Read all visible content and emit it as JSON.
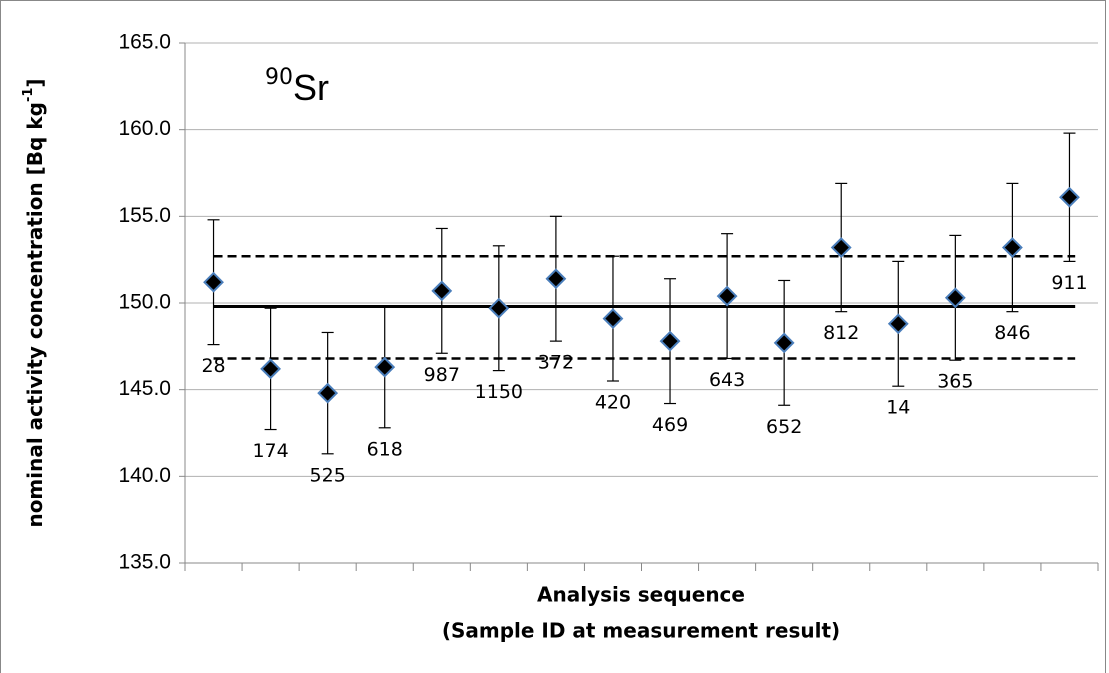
{
  "chart_data": {
    "type": "scatter",
    "title": {
      "mass_number": "90",
      "element": "Sr"
    },
    "ylabel": {
      "text": "nominal activity concentration [Bq kg",
      "sup": "-1",
      "end": "]"
    },
    "xlabel": [
      "Analysis sequence",
      "(Sample ID at measurement result)"
    ],
    "categories": [
      "28",
      "174",
      "525",
      "618",
      "987",
      "1150",
      "372",
      "420",
      "469",
      "643",
      "652",
      "812",
      "14",
      "365",
      "846",
      "911"
    ],
    "values": [
      151.2,
      146.2,
      144.8,
      146.3,
      150.7,
      149.7,
      151.4,
      149.1,
      147.8,
      150.4,
      147.7,
      153.2,
      148.8,
      150.3,
      153.2,
      156.1
    ],
    "errors": [
      3.6,
      3.5,
      3.5,
      3.5,
      3.6,
      3.6,
      3.6,
      3.6,
      3.6,
      3.6,
      3.6,
      3.7,
      3.6,
      3.6,
      3.7,
      3.7
    ],
    "marker_color": "#000000",
    "marker_edge": "#4a7ebb",
    "reference_lines": [
      {
        "value": 149.8,
        "style": "solid"
      },
      {
        "value": 152.7,
        "style": "dashed"
      },
      {
        "value": 146.8,
        "style": "dashed"
      }
    ],
    "ylim": [
      135,
      165
    ],
    "yticks": [
      {
        "value": 135,
        "label": "135.0"
      },
      {
        "value": 140,
        "label": "140.0"
      },
      {
        "value": 145,
        "label": "145.0"
      },
      {
        "value": 150,
        "label": "150.0"
      },
      {
        "value": 155,
        "label": "155.0"
      },
      {
        "value": 160,
        "label": "160.0"
      },
      {
        "value": 165,
        "label": "165.0"
      }
    ],
    "grid": true
  }
}
